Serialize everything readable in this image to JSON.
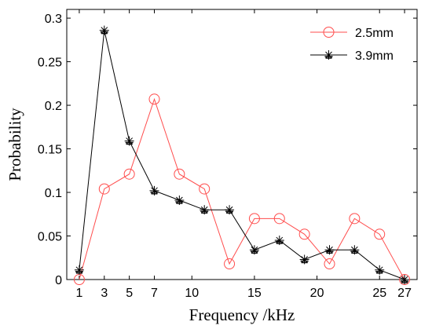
{
  "chart_data": {
    "type": "line",
    "title": "",
    "xlabel": "Frequency /kHz",
    "ylabel": "Probability",
    "xlim": [
      0,
      28
    ],
    "ylim": [
      0,
      0.31
    ],
    "xticks": [
      1,
      3,
      5,
      7,
      10,
      15,
      20,
      25,
      27
    ],
    "yticks": [
      0,
      0.05,
      0.1,
      0.15,
      0.2,
      0.25,
      0.3
    ],
    "ytick_labels": [
      "0",
      "0.05",
      "0.1",
      "0.15",
      "0.2",
      "0.25",
      "0.3"
    ],
    "grid": false,
    "legend_position": "top-right",
    "x": [
      1,
      3,
      5,
      7,
      9,
      11,
      13,
      15,
      17,
      19,
      21,
      23,
      25,
      27
    ],
    "series": [
      {
        "name": "2.5mm",
        "color": "#ff4d4d",
        "marker": "circle",
        "values": [
          0.0,
          0.104,
          0.121,
          0.207,
          0.121,
          0.104,
          0.018,
          0.07,
          0.07,
          0.052,
          0.018,
          0.07,
          0.052,
          0.0
        ]
      },
      {
        "name": "3.9mm",
        "color": "#000000",
        "marker": "star",
        "values": [
          0.011,
          0.286,
          0.159,
          0.102,
          0.091,
          0.08,
          0.08,
          0.034,
          0.045,
          0.023,
          0.034,
          0.034,
          0.011,
          0.0
        ]
      }
    ]
  }
}
